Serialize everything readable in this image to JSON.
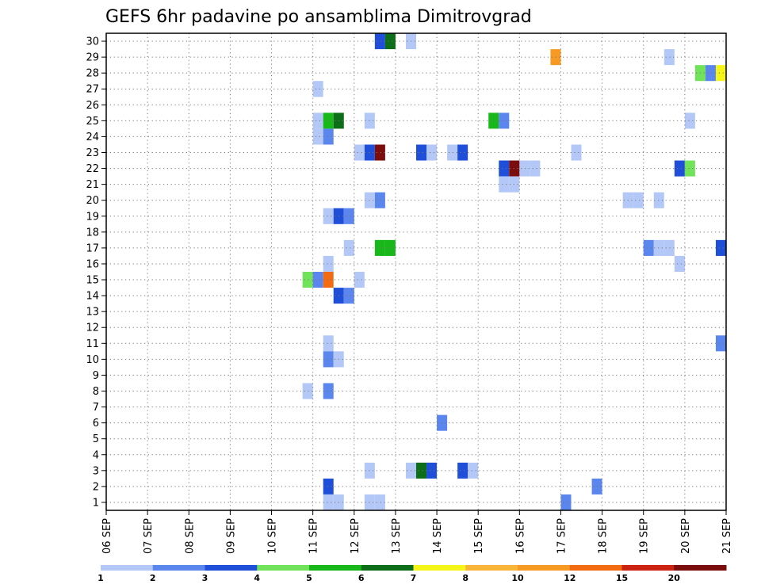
{
  "chart_data": {
    "type": "heatmap",
    "title": "GEFS 6hr padavine po ansamblima Dimitrovgrad",
    "x_tick_labels": [
      "06 SEP",
      "07 SEP",
      "08 SEP",
      "09 SEP",
      "10 SEP",
      "11 SEP",
      "12 SEP",
      "13 SEP",
      "14 SEP",
      "15 SEP",
      "16 SEP",
      "17 SEP",
      "18 SEP",
      "19 SEP",
      "20 SEP",
      "21 SEP"
    ],
    "y_tick_labels": [
      "1",
      "2",
      "3",
      "4",
      "5",
      "6",
      "7",
      "8",
      "9",
      "10",
      "11",
      "12",
      "13",
      "14",
      "15",
      "16",
      "17",
      "18",
      "19",
      "20",
      "21",
      "22",
      "23",
      "24",
      "25",
      "26",
      "27",
      "28",
      "29",
      "30"
    ],
    "xlim": [
      0,
      60
    ],
    "ylim": [
      0.5,
      30.5
    ],
    "grid": true,
    "colorbar": {
      "levels": [
        "1",
        "2",
        "3",
        "4",
        "5",
        "6",
        "7",
        "8",
        "10",
        "12",
        "15",
        "20"
      ],
      "colors": [
        "#b4c8f8",
        "#5b86ee",
        "#1f4fd9",
        "#71e35b",
        "#19b81a",
        "#0c6e18",
        "#f5f51a",
        "#f9b43a",
        "#f79a24",
        "#f26b12",
        "#cc2212",
        "#7b0d0d"
      ]
    },
    "x_unit": "6-hour steps from 06 SEP 00Z",
    "cells": [
      {
        "x": 26,
        "y": 30,
        "c": 3
      },
      {
        "x": 27,
        "y": 30,
        "c": 6
      },
      {
        "x": 29,
        "y": 30,
        "c": 1
      },
      {
        "x": 43,
        "y": 29,
        "c": 9
      },
      {
        "x": 54,
        "y": 29,
        "c": 1
      },
      {
        "x": 57,
        "y": 28,
        "c": 4
      },
      {
        "x": 58,
        "y": 28,
        "c": 2
      },
      {
        "x": 59,
        "y": 28,
        "c": 7
      },
      {
        "x": 20,
        "y": 27,
        "c": 1
      },
      {
        "x": 20,
        "y": 25,
        "c": 1
      },
      {
        "x": 21,
        "y": 25,
        "c": 5
      },
      {
        "x": 22,
        "y": 25,
        "c": 6
      },
      {
        "x": 25,
        "y": 25,
        "c": 1
      },
      {
        "x": 37,
        "y": 25,
        "c": 5
      },
      {
        "x": 38,
        "y": 25,
        "c": 2
      },
      {
        "x": 56,
        "y": 25,
        "c": 1
      },
      {
        "x": 20,
        "y": 24,
        "c": 1
      },
      {
        "x": 21,
        "y": 24,
        "c": 2
      },
      {
        "x": 24,
        "y": 23,
        "c": 1
      },
      {
        "x": 25,
        "y": 23,
        "c": 3
      },
      {
        "x": 26,
        "y": 23,
        "c": 12
      },
      {
        "x": 30,
        "y": 23,
        "c": 3
      },
      {
        "x": 31,
        "y": 23,
        "c": 1
      },
      {
        "x": 33,
        "y": 23,
        "c": 1
      },
      {
        "x": 34,
        "y": 23,
        "c": 3
      },
      {
        "x": 45,
        "y": 23,
        "c": 1
      },
      {
        "x": 38,
        "y": 22,
        "c": 3
      },
      {
        "x": 39,
        "y": 22,
        "c": 12
      },
      {
        "x": 40,
        "y": 22,
        "c": 1
      },
      {
        "x": 41,
        "y": 22,
        "c": 1
      },
      {
        "x": 55,
        "y": 22,
        "c": 3
      },
      {
        "x": 56,
        "y": 22,
        "c": 4
      },
      {
        "x": 38,
        "y": 21,
        "c": 1
      },
      {
        "x": 39,
        "y": 21,
        "c": 1
      },
      {
        "x": 25,
        "y": 20,
        "c": 1
      },
      {
        "x": 26,
        "y": 20,
        "c": 2
      },
      {
        "x": 50,
        "y": 20,
        "c": 1
      },
      {
        "x": 51,
        "y": 20,
        "c": 1
      },
      {
        "x": 53,
        "y": 20,
        "c": 1
      },
      {
        "x": 21,
        "y": 19,
        "c": 1
      },
      {
        "x": 22,
        "y": 19,
        "c": 3
      },
      {
        "x": 23,
        "y": 19,
        "c": 2
      },
      {
        "x": 23,
        "y": 17,
        "c": 1
      },
      {
        "x": 26,
        "y": 17,
        "c": 5
      },
      {
        "x": 27,
        "y": 17,
        "c": 5
      },
      {
        "x": 52,
        "y": 17,
        "c": 2
      },
      {
        "x": 53,
        "y": 17,
        "c": 1
      },
      {
        "x": 54,
        "y": 17,
        "c": 1
      },
      {
        "x": 59,
        "y": 17,
        "c": 3
      },
      {
        "x": 21,
        "y": 16,
        "c": 1
      },
      {
        "x": 55,
        "y": 16,
        "c": 1
      },
      {
        "x": 19,
        "y": 15,
        "c": 4
      },
      {
        "x": 20,
        "y": 15,
        "c": 2
      },
      {
        "x": 21,
        "y": 15,
        "c": 10
      },
      {
        "x": 24,
        "y": 15,
        "c": 1
      },
      {
        "x": 22,
        "y": 14,
        "c": 3
      },
      {
        "x": 23,
        "y": 14,
        "c": 2
      },
      {
        "x": 21,
        "y": 11,
        "c": 1
      },
      {
        "x": 59,
        "y": 11,
        "c": 2
      },
      {
        "x": 21,
        "y": 10,
        "c": 2
      },
      {
        "x": 22,
        "y": 10,
        "c": 1
      },
      {
        "x": 19,
        "y": 8,
        "c": 1
      },
      {
        "x": 21,
        "y": 8,
        "c": 2
      },
      {
        "x": 32,
        "y": 6,
        "c": 2
      },
      {
        "x": 25,
        "y": 3,
        "c": 1
      },
      {
        "x": 29,
        "y": 3,
        "c": 1
      },
      {
        "x": 30,
        "y": 3,
        "c": 6
      },
      {
        "x": 31,
        "y": 3,
        "c": 3
      },
      {
        "x": 34,
        "y": 3,
        "c": 3
      },
      {
        "x": 35,
        "y": 3,
        "c": 1
      },
      {
        "x": 21,
        "y": 2,
        "c": 3
      },
      {
        "x": 47,
        "y": 2,
        "c": 2
      },
      {
        "x": 21,
        "y": 1,
        "c": 1
      },
      {
        "x": 22,
        "y": 1,
        "c": 1
      },
      {
        "x": 25,
        "y": 1,
        "c": 1
      },
      {
        "x": 26,
        "y": 1,
        "c": 1
      },
      {
        "x": 44,
        "y": 1,
        "c": 2
      }
    ]
  }
}
